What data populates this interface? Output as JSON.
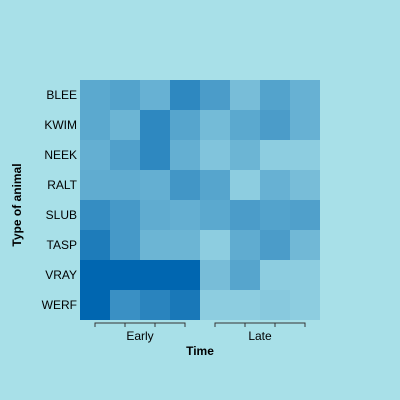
{
  "chart_data": {
    "type": "heatmap",
    "xlabel": "Time",
    "ylabel": "Type of animal",
    "rows": [
      "BLEE",
      "KWIM",
      "NEEK",
      "RALT",
      "SLUB",
      "TASP",
      "VRAY",
      "WERF"
    ],
    "groups": [
      {
        "label": "Early",
        "columns": 4
      },
      {
        "label": "Late",
        "columns": 4
      }
    ],
    "values": [
      [
        0.45,
        0.5,
        0.38,
        0.72,
        0.55,
        0.28,
        0.5,
        0.38
      ],
      [
        0.45,
        0.35,
        0.72,
        0.48,
        0.3,
        0.45,
        0.55,
        0.38
      ],
      [
        0.4,
        0.52,
        0.72,
        0.4,
        0.22,
        0.35,
        0.15,
        0.15
      ],
      [
        0.42,
        0.42,
        0.4,
        0.6,
        0.48,
        0.15,
        0.38,
        0.28
      ],
      [
        0.68,
        0.58,
        0.42,
        0.4,
        0.45,
        0.55,
        0.5,
        0.52
      ],
      [
        0.82,
        0.58,
        0.35,
        0.35,
        0.15,
        0.42,
        0.55,
        0.32
      ],
      [
        1.0,
        1.0,
        1.0,
        1.0,
        0.28,
        0.48,
        0.15,
        0.15
      ],
      [
        1.0,
        0.65,
        0.75,
        0.85,
        0.15,
        0.15,
        0.18,
        0.15
      ]
    ],
    "color_scale": {
      "low": "#a6dfe8",
      "high": "#0066b0"
    },
    "background": "#a8e0e8"
  }
}
